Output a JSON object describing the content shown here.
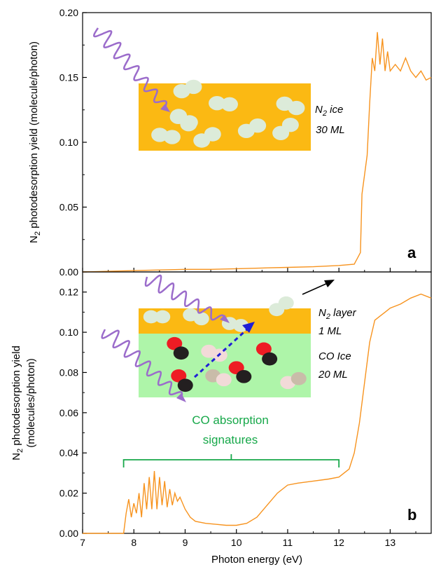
{
  "figure": {
    "xlabel": "Photon energy (eV)",
    "x_ticks": [
      "7",
      "8",
      "9",
      "10",
      "11",
      "12",
      "13"
    ]
  },
  "colors": {
    "line": "#f7931e",
    "n2_ice_fill": "#fbb913",
    "co_ice_fill": "#aef5a9",
    "n2_molecule": "#dcebd9",
    "co_red": "#ee1c24",
    "co_black": "#231f20",
    "co_pink": "#f2dad8",
    "co_tan": "#c9bca9",
    "photon_wave": "#9b6ccb",
    "dashed_arrow": "#1f1fd6",
    "co_bracket": "#17a84a"
  },
  "chart_data": [
    {
      "type": "line",
      "panel": "a",
      "xlabel": "",
      "ylabel": "N2 photodesorption yield (molecule/photon)",
      "ylabel_main": "N",
      "ylabel_sub": "2",
      "ylabel_rest": " photodesorption yield (molecule/photon)",
      "xlim": [
        7,
        13.8
      ],
      "ylim": [
        0,
        0.2
      ],
      "y_ticks": [
        "0.00",
        "0.05",
        "0.10",
        "0.15",
        "0.20"
      ],
      "grid": false,
      "series": [
        {
          "x": [
            7.0,
            7.5,
            8.0,
            8.5,
            9.0,
            9.5,
            10.0,
            10.5,
            11.0,
            11.5,
            12.0,
            12.3,
            12.42,
            12.45,
            12.5,
            12.55,
            12.6,
            12.65,
            12.7,
            12.75,
            12.8,
            12.85,
            12.9,
            12.95,
            13.0,
            13.1,
            13.2,
            13.3,
            13.4,
            13.5,
            13.6,
            13.7,
            13.8
          ],
          "y": [
            0.0,
            0.0005,
            0.001,
            0.0015,
            0.002,
            0.002,
            0.0025,
            0.003,
            0.0035,
            0.004,
            0.005,
            0.006,
            0.015,
            0.06,
            0.075,
            0.09,
            0.13,
            0.165,
            0.155,
            0.185,
            0.16,
            0.18,
            0.155,
            0.17,
            0.155,
            0.16,
            0.155,
            0.165,
            0.155,
            0.15,
            0.155,
            0.148,
            0.15
          ]
        }
      ],
      "panel_label": "a",
      "inset": {
        "label_line1_main": "N",
        "label_line1_sub": "2",
        "label_line1_rest": " ice",
        "label_line2": "30 ML"
      }
    },
    {
      "type": "line",
      "panel": "b",
      "xlabel": "Photon energy (eV)",
      "ylabel": "N2 photodesorption yield (molecules/photon)",
      "ylabel_main": "N",
      "ylabel_sub": "2",
      "ylabel_rest": " photodesorption yield",
      "ylabel_line2": "(molecules/photon)",
      "xlim": [
        7,
        13.8
      ],
      "ylim": [
        0,
        0.13
      ],
      "y_ticks": [
        "0.00",
        "0.02",
        "0.04",
        "0.06",
        "0.08",
        "0.10",
        "0.12"
      ],
      "grid": false,
      "series": [
        {
          "x": [
            7.0,
            7.5,
            7.8,
            7.85,
            7.9,
            7.95,
            8.0,
            8.05,
            8.1,
            8.15,
            8.2,
            8.25,
            8.3,
            8.35,
            8.4,
            8.45,
            8.5,
            8.55,
            8.6,
            8.65,
            8.7,
            8.75,
            8.8,
            8.85,
            8.9,
            9.0,
            9.1,
            9.2,
            9.4,
            9.6,
            9.8,
            10.0,
            10.2,
            10.4,
            10.6,
            10.8,
            11.0,
            11.2,
            11.5,
            11.8,
            12.0,
            12.2,
            12.3,
            12.4,
            12.5,
            12.6,
            12.7,
            12.8,
            12.9,
            13.0,
            13.2,
            13.4,
            13.6,
            13.8
          ],
          "y": [
            0.0,
            0.0,
            0.0,
            0.01,
            0.017,
            0.008,
            0.015,
            0.01,
            0.02,
            0.008,
            0.025,
            0.012,
            0.028,
            0.012,
            0.031,
            0.012,
            0.028,
            0.014,
            0.026,
            0.013,
            0.022,
            0.014,
            0.02,
            0.016,
            0.018,
            0.012,
            0.008,
            0.006,
            0.005,
            0.0045,
            0.004,
            0.004,
            0.005,
            0.008,
            0.014,
            0.02,
            0.024,
            0.025,
            0.026,
            0.027,
            0.028,
            0.032,
            0.04,
            0.055,
            0.075,
            0.095,
            0.106,
            0.108,
            0.11,
            0.112,
            0.114,
            0.117,
            0.119,
            0.117
          ]
        }
      ],
      "panel_label": "b",
      "inset": {
        "n2_layer_line1_main": "N",
        "n2_layer_line1_sub": "2",
        "n2_layer_line1_rest": " layer",
        "n2_layer_line2": "1 ML",
        "co_ice_line1": "CO Ice",
        "co_ice_line2": "20 ML",
        "co_absorption_line1": "CO absorption",
        "co_absorption_line2": "signatures",
        "bracket_x_range": [
          7.8,
          12.0
        ]
      }
    }
  ]
}
